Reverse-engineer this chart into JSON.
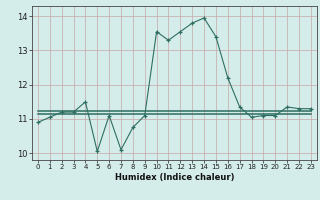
{
  "xlabel": "Humidex (Indice chaleur)",
  "x_values": [
    0,
    1,
    2,
    3,
    4,
    5,
    6,
    7,
    8,
    9,
    10,
    11,
    12,
    13,
    14,
    15,
    16,
    17,
    18,
    19,
    20,
    21,
    22,
    23
  ],
  "line1_y": [
    10.9,
    11.05,
    11.2,
    11.2,
    11.5,
    10.05,
    11.1,
    10.1,
    10.75,
    11.1,
    13.55,
    13.3,
    13.55,
    13.8,
    13.95,
    13.4,
    12.2,
    11.35,
    11.05,
    11.1,
    11.1,
    11.35,
    11.3,
    11.3
  ],
  "line2_y": [
    11.15,
    11.15,
    11.15,
    11.15,
    11.15,
    11.15,
    11.15,
    11.15,
    11.15,
    11.15,
    11.15,
    11.15,
    11.15,
    11.15,
    11.15,
    11.15,
    11.15,
    11.15,
    11.15,
    11.15,
    11.15,
    11.15,
    11.15,
    11.15
  ],
  "line3_y": [
    11.22,
    11.22,
    11.22,
    11.22,
    11.22,
    11.22,
    11.22,
    11.22,
    11.22,
    11.22,
    11.22,
    11.22,
    11.22,
    11.22,
    11.22,
    11.22,
    11.22,
    11.22,
    11.22,
    11.22,
    11.22,
    11.22,
    11.22,
    11.22
  ],
  "line_color": "#2e6e62",
  "bg_color": "#d4edea",
  "grid_color_v": "#c8a8a8",
  "grid_color_h": "#c8a8a8",
  "ylim": [
    9.8,
    14.3
  ],
  "xlim": [
    -0.5,
    23.5
  ],
  "yticks": [
    10,
    11,
    12,
    13,
    14
  ],
  "xticks": [
    0,
    1,
    2,
    3,
    4,
    5,
    6,
    7,
    8,
    9,
    10,
    11,
    12,
    13,
    14,
    15,
    16,
    17,
    18,
    19,
    20,
    21,
    22,
    23
  ]
}
